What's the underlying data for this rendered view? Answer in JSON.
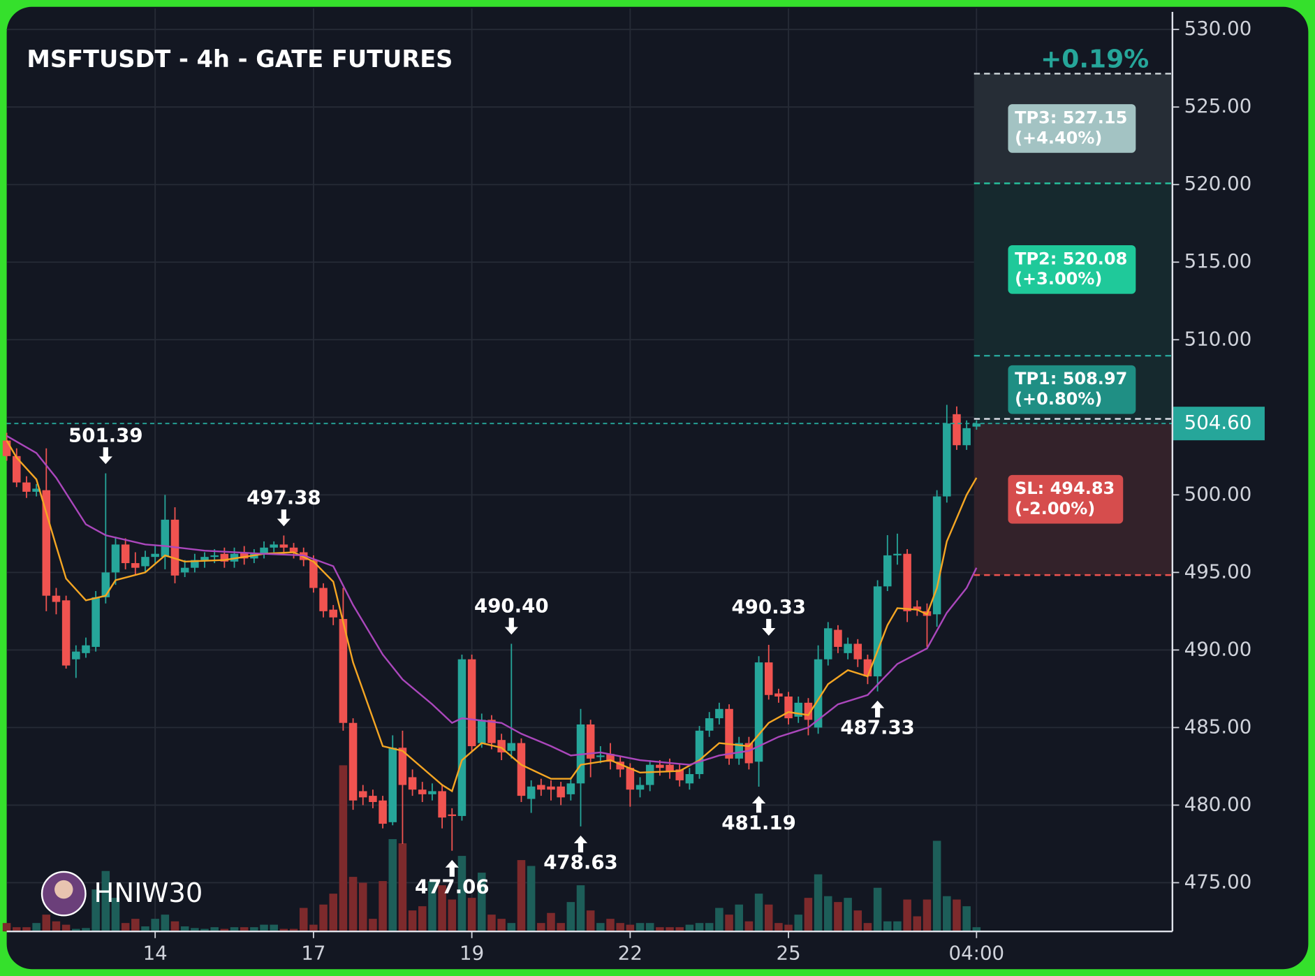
{
  "chart_data": {
    "type": "candlestick",
    "title": "MSFTUSDT - 4h - GATE FUTURES",
    "change_label": "+0.19%",
    "watermark": "HNIW30",
    "categories": [
      null,
      null,
      null,
      null,
      null,
      null,
      null,
      null,
      null,
      null,
      null,
      null,
      null,
      null,
      null,
      "14",
      null,
      null,
      null,
      null,
      null,
      null,
      null,
      null,
      null,
      null,
      null,
      null,
      null,
      null,
      null,
      "17",
      null,
      null,
      null,
      null,
      null,
      null,
      null,
      null,
      null,
      null,
      null,
      null,
      null,
      null,
      null,
      "19",
      null,
      null,
      null,
      null,
      null,
      null,
      null,
      null,
      null,
      null,
      null,
      null,
      null,
      null,
      null,
      "22",
      null,
      null,
      null,
      null,
      null,
      null,
      null,
      null,
      null,
      null,
      null,
      null,
      null,
      null,
      null,
      "25",
      null,
      null,
      null,
      null,
      null,
      null,
      null,
      null,
      null,
      null,
      null,
      null,
      null,
      null,
      null,
      null,
      null,
      null,
      "04:00"
    ],
    "open": [
      503.5,
      502.5,
      500.8,
      500.2,
      500.3,
      493.5,
      493.2,
      489.4,
      489.8,
      490.2,
      493.4,
      495,
      496.8,
      495.6,
      495.4,
      496,
      496,
      498.4,
      495,
      495.3,
      495.8,
      496,
      496.2,
      495.7,
      496.3,
      495.9,
      496.2,
      496.6,
      496.8,
      496.6,
      496.3,
      495.8,
      494,
      492.6,
      492,
      485.3,
      480.9,
      480.6,
      480.3,
      478.9,
      483.7,
      481.8,
      481,
      480.7,
      480.9,
      479.4,
      479.3,
      489.4,
      484,
      485.5,
      484.2,
      483.5,
      484,
      480.4,
      481.3,
      481.2,
      481.2,
      480.7,
      481.4,
      485.2,
      483.1,
      483.3,
      482.8,
      482.4,
      481,
      481.3,
      482.6,
      482.6,
      482.3,
      481.4,
      482,
      484.8,
      485.6,
      486.2,
      483,
      484,
      482.8,
      489.2,
      487.2,
      487,
      485.7,
      486.6,
      485,
      489.4,
      491.3,
      489.8,
      490.4,
      489.4,
      488.3,
      494.1,
      496.1,
      496.2,
      492.8,
      492.5,
      492.3,
      499.9,
      505.2,
      503.2,
      504.4
    ],
    "high": [
      504,
      503,
      501.2,
      500.7,
      503,
      494,
      493.5,
      490.3,
      490.8,
      493.8,
      501.39,
      497.3,
      497.2,
      496.3,
      496.4,
      496.8,
      500,
      499.2,
      495.8,
      496.2,
      496.3,
      496.5,
      496.6,
      496.6,
      496.7,
      496.5,
      497,
      497,
      497.38,
      496.9,
      496.6,
      496.1,
      494.3,
      492.9,
      494,
      485.6,
      481.3,
      481,
      480.6,
      484.5,
      484.8,
      482.3,
      481.5,
      481.4,
      481.3,
      479.8,
      489.7,
      489.7,
      485.9,
      485.8,
      484.6,
      490.4,
      484.3,
      481.6,
      481.7,
      481.6,
      481.5,
      481.8,
      486.2,
      485.5,
      483.8,
      484,
      483.2,
      482.7,
      481.8,
      482.9,
      482.9,
      483,
      482.7,
      482.4,
      485.1,
      486,
      486.6,
      486.5,
      484.4,
      484.4,
      489.6,
      490.33,
      487.5,
      487.3,
      487,
      486.9,
      490.3,
      491.8,
      491.6,
      490.8,
      490.7,
      489.7,
      494.5,
      497.4,
      497.5,
      496.5,
      493.2,
      493,
      500.3,
      505.8,
      505.7,
      504.8,
      504.8
    ],
    "low": [
      502.2,
      500.5,
      499.8,
      499.9,
      492.5,
      492.3,
      488.8,
      488.2,
      489.5,
      489.9,
      493,
      494.2,
      495.2,
      494.8,
      495,
      495.6,
      495.2,
      494.3,
      494.7,
      495,
      495.3,
      495.6,
      495.3,
      495.3,
      495.5,
      495.6,
      495.9,
      496.3,
      496.2,
      495.9,
      495.4,
      493.7,
      492.1,
      491.6,
      484.8,
      479.7,
      480,
      479.8,
      478.5,
      478.7,
      477.5,
      480.6,
      480.2,
      480.3,
      478.5,
      477.06,
      479,
      483.4,
      483.7,
      483.6,
      482.9,
      483,
      480.2,
      479.5,
      480.6,
      480.3,
      480,
      480.3,
      478.63,
      481.8,
      482.7,
      482.3,
      481.8,
      479.9,
      480.5,
      480.9,
      481.9,
      481.7,
      481.2,
      481,
      481.7,
      484.4,
      485.2,
      482.6,
      482.6,
      482.3,
      481.19,
      486.8,
      486.6,
      485.2,
      485.3,
      484.5,
      484.6,
      489,
      489.8,
      489.4,
      488.9,
      487.8,
      487.33,
      493.8,
      495.5,
      491.8,
      492.2,
      490.2,
      491.5,
      499.5,
      502.9,
      502.9,
      504.2
    ],
    "close": [
      502.5,
      500.8,
      500.2,
      500.4,
      493.5,
      493.1,
      489,
      489.9,
      490.3,
      493.4,
      495,
      496.8,
      495.6,
      495.3,
      496,
      496.2,
      498.4,
      494.8,
      495.3,
      495.8,
      496,
      496.1,
      495.7,
      496.2,
      495.9,
      496.2,
      496.6,
      496.8,
      496.6,
      496.3,
      495.8,
      494,
      492.5,
      492.1,
      485.3,
      480.3,
      480.5,
      480.2,
      478.8,
      483.7,
      481.3,
      481,
      480.7,
      480.9,
      479.2,
      479.3,
      489.4,
      483.8,
      485.5,
      484,
      483.4,
      484,
      480.6,
      481.2,
      481,
      481,
      480.5,
      481.4,
      485.2,
      483,
      483.2,
      482.8,
      482.3,
      481,
      481.3,
      482.6,
      482.4,
      482.2,
      481.6,
      482,
      484.8,
      485.6,
      486.2,
      483,
      484,
      482.7,
      489.2,
      487.1,
      487,
      485.6,
      486.6,
      485.5,
      489.4,
      491.4,
      490.2,
      490.4,
      489.4,
      488.3,
      494.1,
      496.1,
      496.2,
      492.5,
      492.6,
      492.2,
      499.9,
      504.6,
      503.2,
      504.3,
      504.6
    ],
    "volume": [
      10,
      5,
      5,
      10,
      20,
      12,
      8,
      3,
      4,
      50,
      72,
      40,
      10,
      15,
      6,
      15,
      20,
      12,
      6,
      4,
      3,
      5,
      3,
      5,
      5,
      5,
      8,
      8,
      3,
      3,
      28,
      8,
      32,
      45,
      198,
      65,
      58,
      15,
      60,
      110,
      105,
      25,
      30,
      60,
      55,
      38,
      90,
      40,
      70,
      20,
      15,
      10,
      85,
      78,
      10,
      22,
      10,
      35,
      55,
      25,
      10,
      15,
      10,
      8,
      10,
      10,
      5,
      5,
      5,
      8,
      10,
      10,
      28,
      20,
      32,
      12,
      45,
      32,
      10,
      8,
      20,
      40,
      68,
      42,
      35,
      40,
      25,
      10,
      52,
      12,
      12,
      38,
      18,
      38,
      108,
      42,
      38,
      30,
      5
    ],
    "vlim": [
      0,
      220
    ],
    "colors": {
      "up": "#26a69a",
      "down": "#f05350",
      "volume_up": "#1d5e59",
      "volume_down": "#7d2a2c"
    },
    "ylim": [
      471.86,
      531.35
    ],
    "yticks": [
      {
        "value": 475,
        "label": "475.00"
      },
      {
        "value": 480,
        "label": "480.00"
      },
      {
        "value": 485,
        "label": "485.00"
      },
      {
        "value": 490,
        "label": "490.00"
      },
      {
        "value": 495,
        "label": "495.00"
      },
      {
        "value": 500,
        "label": "500.00"
      },
      {
        "value": 505,
        "label": "505.00"
      },
      {
        "value": 510,
        "label": "510.00"
      },
      {
        "value": 515,
        "label": "515.00"
      },
      {
        "value": 520,
        "label": "520.00"
      },
      {
        "value": 525,
        "label": "525.00"
      },
      {
        "value": 530,
        "label": "530.00"
      }
    ],
    "grid": true,
    "lines": [
      {
        "color": "#f5a623",
        "x": [
          0,
          1,
          3,
          5,
          6,
          8,
          10,
          11,
          14,
          16,
          18,
          22,
          26,
          29,
          31,
          33,
          35,
          38,
          40,
          44,
          45,
          46,
          48,
          50,
          52,
          55,
          57,
          58,
          61,
          64,
          68,
          70,
          72,
          75,
          77,
          79,
          81,
          83,
          85,
          87,
          89,
          90,
          92,
          93,
          94,
          95,
          97,
          98
        ],
        "values": [
          503.5,
          502.4,
          501,
          496.7,
          494.6,
          493.2,
          493.5,
          494.5,
          495,
          496.1,
          495.7,
          495.8,
          496.2,
          496.3,
          495.7,
          494.4,
          489.2,
          483.8,
          483.5,
          481.3,
          480.9,
          482.9,
          484,
          483.7,
          482.6,
          481.7,
          481.7,
          482.6,
          482.9,
          482.1,
          482.2,
          482.9,
          484,
          483.8,
          485.3,
          486,
          485.8,
          487.8,
          488.7,
          488.3,
          491.6,
          492.7,
          492.6,
          492.3,
          494,
          497,
          500,
          501.1
        ]
      },
      {
        "color": "#ab47bc",
        "x": [
          0,
          3,
          5,
          8,
          10,
          14,
          16,
          20,
          26,
          30,
          33,
          35,
          38,
          40,
          43,
          45,
          46,
          50,
          52,
          55,
          57,
          60,
          64,
          69,
          72,
          75,
          78,
          81,
          84,
          87,
          90,
          93,
          95,
          97,
          98
        ],
        "values": [
          503.8,
          502.7,
          501.1,
          498.1,
          497.4,
          496.8,
          496.7,
          496.4,
          496.2,
          496.1,
          495.4,
          492.9,
          489.7,
          488.1,
          486.5,
          485.3,
          485.6,
          485.3,
          484.6,
          483.8,
          483.2,
          483.4,
          482.9,
          482.6,
          483.2,
          483.5,
          484.4,
          485,
          486.5,
          487.1,
          489.1,
          490.1,
          492.4,
          494,
          495.3
        ]
      }
    ],
    "annotations": [
      {
        "label": "501.39",
        "value": 501.39,
        "index": 10,
        "position": "above"
      },
      {
        "label": "497.38",
        "value": 497.38,
        "index": 28,
        "position": "above"
      },
      {
        "label": "490.40",
        "value": 490.4,
        "index": 51,
        "position": "above"
      },
      {
        "label": "490.33",
        "value": 490.33,
        "index": 77,
        "position": "above"
      },
      {
        "label": "477.06",
        "value": 477.06,
        "index": 45,
        "position": "below"
      },
      {
        "label": "478.63",
        "value": 478.63,
        "index": 58,
        "position": "below"
      },
      {
        "label": "481.19",
        "value": 481.19,
        "index": 76,
        "position": "below"
      },
      {
        "label": "487.33",
        "value": 487.33,
        "index": 88,
        "position": "below"
      }
    ],
    "last_price": {
      "value": 504.6,
      "label": "504.60",
      "color": "#26a69a"
    },
    "entry": 504.9,
    "levels": [
      {
        "label": "TP3: 527.15",
        "note": "(+4.40%)",
        "value": 527.15,
        "color": "#a3c3c3",
        "line": "#d0d8dc",
        "zone": "#262d36"
      },
      {
        "label": "TP2: 520.08",
        "note": "(+3.00%)",
        "value": 520.08,
        "color": "#1fc99a",
        "line": "#26c6a0",
        "zone": "#16292e"
      },
      {
        "label": "TP1: 508.97",
        "note": "(+0.80%)",
        "value": 508.97,
        "color": "#1f8f84",
        "line": "#26a69a",
        "zone": "#16292e"
      },
      {
        "label": "SL: 494.83",
        "note": "(-2.00%)",
        "value": 494.83,
        "color": "#d64d4d",
        "line": "#ef5350",
        "zone": "#33222a"
      }
    ]
  }
}
